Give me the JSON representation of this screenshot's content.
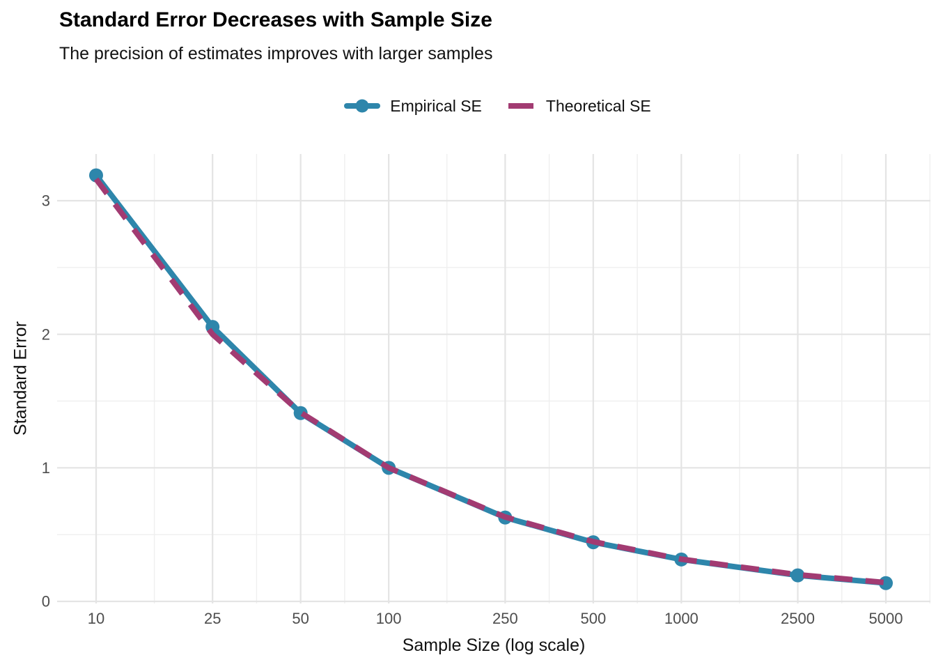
{
  "chart_data": {
    "type": "line",
    "title": "Standard Error Decreases with Sample Size",
    "subtitle": "The precision of estimates improves with larger samples",
    "xlabel": "Sample Size (log scale)",
    "ylabel": "Standard Error",
    "x_scale": "log10",
    "x": [
      10,
      25,
      50,
      100,
      250,
      500,
      1000,
      2500,
      5000
    ],
    "x_tick_labels": [
      "10",
      "25",
      "50",
      "100",
      "250",
      "500",
      "1000",
      "2500",
      "5000"
    ],
    "y_ticks": [
      0,
      1,
      2,
      3
    ],
    "y_minor_ticks": [
      0.5,
      1.5,
      2.5
    ],
    "ylim": [
      0,
      3.35
    ],
    "grid": true,
    "legend_position": "top-center",
    "series": [
      {
        "name": "Empirical SE",
        "style": "solid-line-with-markers",
        "color": "#2E86AB",
        "values": [
          3.19,
          2.055,
          1.41,
          1.0,
          0.628,
          0.443,
          0.314,
          0.195,
          0.137
        ]
      },
      {
        "name": "Theoretical SE",
        "style": "dashed-line",
        "color": "#A23B72",
        "values": [
          3.162,
          2.0,
          1.414,
          1.0,
          0.632,
          0.447,
          0.316,
          0.2,
          0.141
        ]
      }
    ]
  },
  "colors": {
    "background": "#ffffff",
    "grid_major": "#e4e4e4",
    "grid_minor": "#efefef",
    "tick_label": "#4d4d4d",
    "title_text": "#000000"
  }
}
